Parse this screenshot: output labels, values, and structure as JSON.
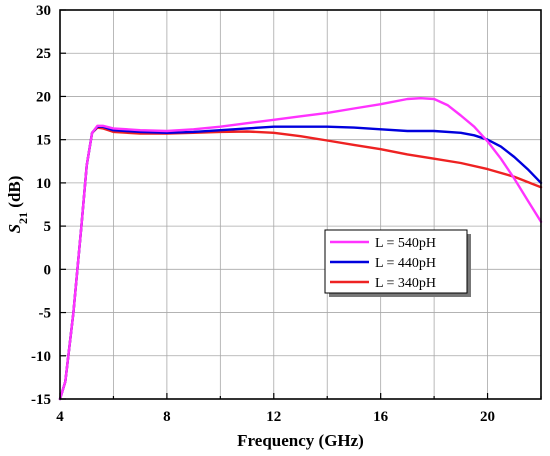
{
  "chart_data": {
    "type": "line",
    "title": "",
    "xlabel": "Frequency (GHz)",
    "ylabel": {
      "symbol": "S",
      "subscript": "21",
      "unit": " (dB)"
    },
    "xlim": [
      4,
      22
    ],
    "ylim": [
      -15,
      30
    ],
    "xticks": [
      4,
      8,
      12,
      16,
      20
    ],
    "yticks": [
      30,
      25,
      20,
      15,
      10,
      5,
      0,
      -5,
      -10,
      -15
    ],
    "grid": true,
    "legend_position": "center-right",
    "series": [
      {
        "name": "L = 540pH",
        "color": "#ff33ff",
        "x": [
          4.0,
          4.2,
          4.5,
          4.8,
          5.0,
          5.2,
          5.4,
          5.6,
          6.0,
          7.0,
          8.0,
          9.0,
          10.0,
          11.0,
          12.0,
          13.0,
          14.0,
          15.0,
          16.0,
          17.0,
          17.5,
          18.0,
          18.5,
          19.0,
          19.5,
          20.0,
          20.5,
          21.0,
          21.5,
          22.0
        ],
        "y": [
          -15.0,
          -13.0,
          -5.0,
          5.0,
          12.0,
          15.8,
          16.6,
          16.6,
          16.3,
          16.1,
          16.0,
          16.2,
          16.5,
          16.9,
          17.3,
          17.7,
          18.1,
          18.6,
          19.1,
          19.7,
          19.8,
          19.7,
          19.0,
          17.8,
          16.5,
          14.8,
          12.8,
          10.5,
          8.0,
          5.5
        ]
      },
      {
        "name": "L = 440pH",
        "color": "#0000dd",
        "x": [
          4.0,
          4.2,
          4.5,
          4.8,
          5.0,
          5.2,
          5.4,
          5.6,
          6.0,
          7.0,
          8.0,
          9.0,
          10.0,
          11.0,
          12.0,
          13.0,
          14.0,
          15.0,
          16.0,
          17.0,
          18.0,
          19.0,
          19.5,
          20.0,
          20.5,
          21.0,
          21.5,
          22.0
        ],
        "y": [
          -15.0,
          -13.0,
          -5.0,
          5.0,
          12.0,
          15.8,
          16.5,
          16.5,
          16.1,
          15.9,
          15.8,
          15.9,
          16.1,
          16.3,
          16.5,
          16.5,
          16.5,
          16.4,
          16.2,
          16.0,
          16.0,
          15.8,
          15.5,
          15.0,
          14.2,
          13.0,
          11.6,
          10.0
        ]
      },
      {
        "name": "L = 340pH",
        "color": "#ee2222",
        "x": [
          4.0,
          4.2,
          4.5,
          4.8,
          5.0,
          5.2,
          5.4,
          5.6,
          6.0,
          7.0,
          8.0,
          9.0,
          10.0,
          11.0,
          12.0,
          13.0,
          14.0,
          15.0,
          16.0,
          17.0,
          18.0,
          19.0,
          20.0,
          21.0,
          22.0
        ],
        "y": [
          -15.0,
          -13.0,
          -5.0,
          5.0,
          12.0,
          15.8,
          16.4,
          16.3,
          15.9,
          15.7,
          15.7,
          15.8,
          15.9,
          15.95,
          15.8,
          15.4,
          14.9,
          14.4,
          13.9,
          13.3,
          12.8,
          12.3,
          11.6,
          10.7,
          9.5
        ]
      }
    ]
  }
}
